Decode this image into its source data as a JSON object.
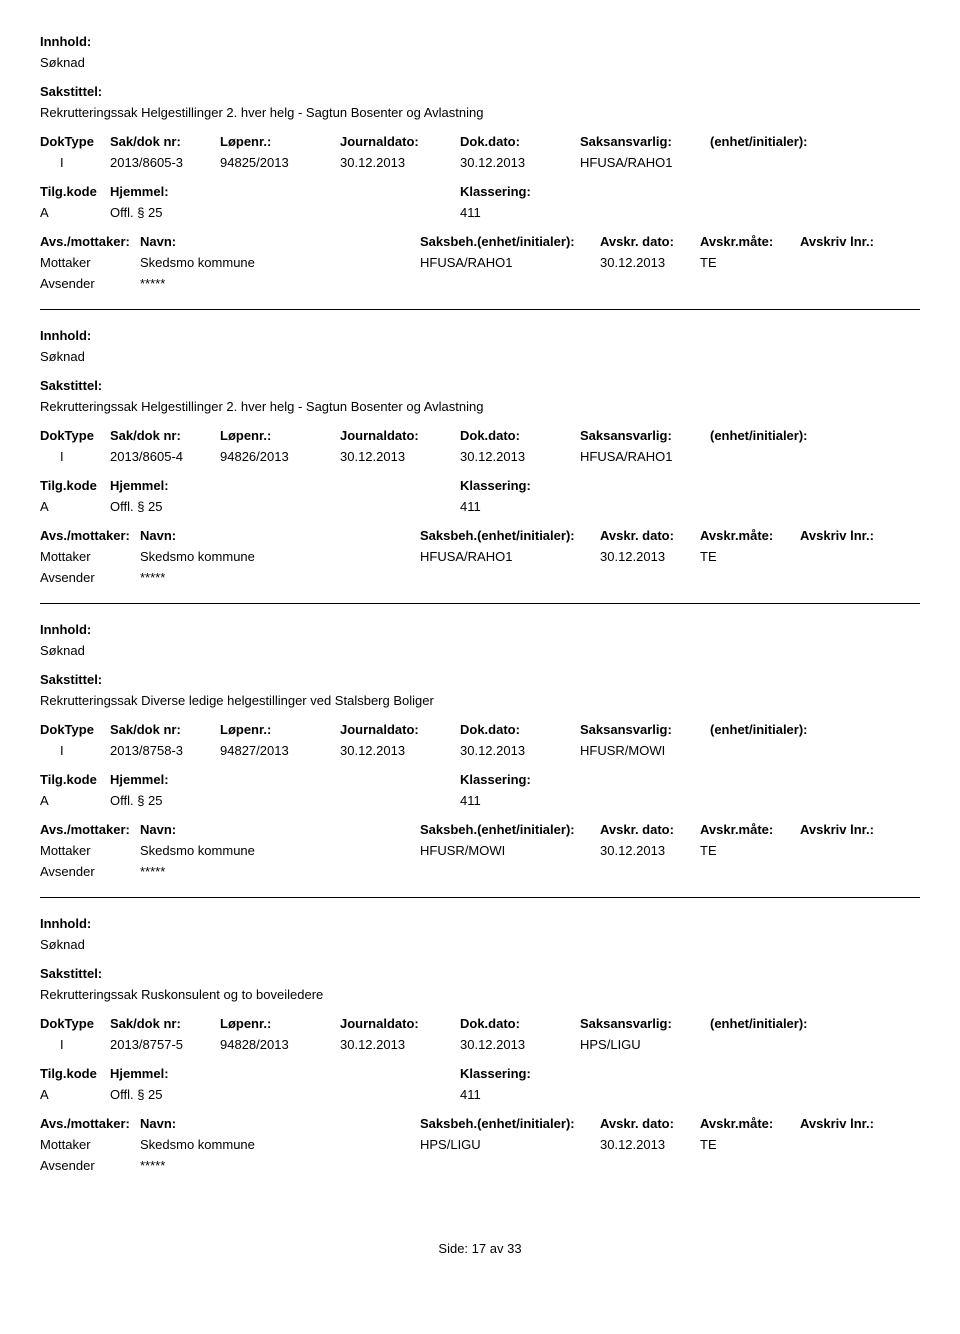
{
  "labels": {
    "innhold": "Innhold:",
    "sakstittel": "Sakstittel:",
    "doktype": "DokType",
    "saknr": "Sak/dok nr:",
    "lopenr": "Løpenr.:",
    "journaldato": "Journaldato:",
    "dokdato": "Dok.dato:",
    "saksansvarlig": "Saksansvarlig:",
    "enhet": "(enhet/initialer):",
    "tilgkode": "Tilg.kode",
    "hjemmel": "Hjemmel:",
    "klassering": "Klassering:",
    "avsmottaker": "Avs./mottaker:",
    "navn": "Navn:",
    "saksbeh": "Saksbeh.",
    "saksbeh_enhet": "(enhet/initialer):",
    "avskrdato": "Avskr. dato:",
    "avskrmate": "Avskr.måte:",
    "avskrivlnr": "Avskriv lnr.:",
    "mottaker": "Mottaker",
    "avsender": "Avsender"
  },
  "records": [
    {
      "innhold": "Søknad",
      "sakstittel": "Rekrutteringssak Helgestillinger 2. hver helg - Sagtun Bosenter og Avlastning",
      "doktype": "I",
      "saknr": "2013/8605-3",
      "lopenr": "94825/2013",
      "journaldato": "30.12.2013",
      "dokdato": "30.12.2013",
      "saksansvarlig": "HFUSA/RAHO1",
      "tilgkode": "A",
      "hjemmel": "Offl. § 25",
      "klassering": "411",
      "mottaker_navn": "Skedsmo kommune",
      "saksbeh": "HFUSA/RAHO1",
      "avskrdato": "30.12.2013",
      "avskrmate": "TE",
      "avsender_navn": "*****"
    },
    {
      "innhold": "Søknad",
      "sakstittel": "Rekrutteringssak Helgestillinger 2. hver helg - Sagtun Bosenter og Avlastning",
      "doktype": "I",
      "saknr": "2013/8605-4",
      "lopenr": "94826/2013",
      "journaldato": "30.12.2013",
      "dokdato": "30.12.2013",
      "saksansvarlig": "HFUSA/RAHO1",
      "tilgkode": "A",
      "hjemmel": "Offl. § 25",
      "klassering": "411",
      "mottaker_navn": "Skedsmo kommune",
      "saksbeh": "HFUSA/RAHO1",
      "avskrdato": "30.12.2013",
      "avskrmate": "TE",
      "avsender_navn": "*****"
    },
    {
      "innhold": "Søknad",
      "sakstittel": "Rekrutteringssak Diverse ledige helgestillinger ved Stalsberg Boliger",
      "doktype": "I",
      "saknr": "2013/8758-3",
      "lopenr": "94827/2013",
      "journaldato": "30.12.2013",
      "dokdato": "30.12.2013",
      "saksansvarlig": "HFUSR/MOWI",
      "tilgkode": "A",
      "hjemmel": "Offl. § 25",
      "klassering": "411",
      "mottaker_navn": "Skedsmo kommune",
      "saksbeh": "HFUSR/MOWI",
      "avskrdato": "30.12.2013",
      "avskrmate": "TE",
      "avsender_navn": "*****"
    },
    {
      "innhold": "Søknad",
      "sakstittel": "Rekrutteringssak Ruskonsulent og to boveiledere",
      "doktype": "I",
      "saknr": "2013/8757-5",
      "lopenr": "94828/2013",
      "journaldato": "30.12.2013",
      "dokdato": "30.12.2013",
      "saksansvarlig": "HPS/LIGU",
      "tilgkode": "A",
      "hjemmel": "Offl. § 25",
      "klassering": "411",
      "mottaker_navn": "Skedsmo kommune",
      "saksbeh": "HPS/LIGU",
      "avskrdato": "30.12.2013",
      "avskrmate": "TE",
      "avsender_navn": "*****"
    }
  ],
  "footer": {
    "side": "Side:",
    "current": "17",
    "av": "av",
    "total": "33"
  }
}
